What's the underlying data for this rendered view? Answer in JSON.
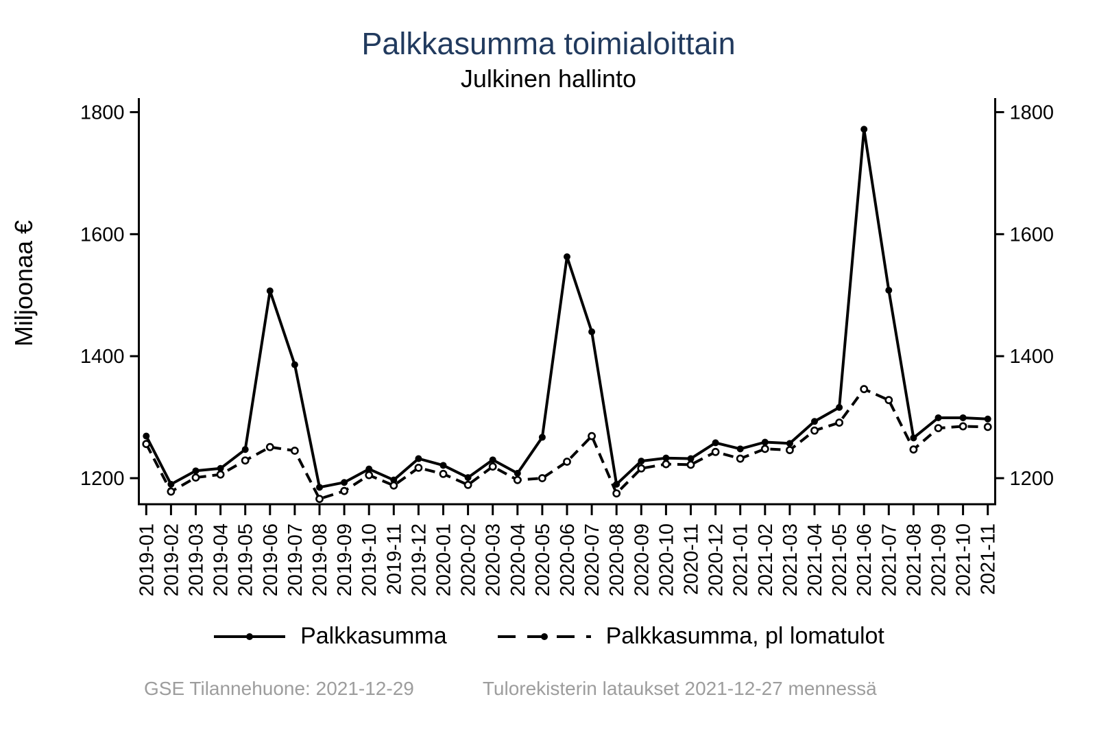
{
  "title": "Palkkasumma toimialoittain",
  "subtitle": "Julkinen hallinto",
  "footer": {
    "left": "GSE Tilannehuone: 2021-12-29",
    "right": "Tulorekisterin lataukset 2021-12-27 mennessä"
  },
  "colors": {
    "title": "#213a5e",
    "axis": "#000000",
    "series": "#000000",
    "footer_text": "#9d9d9d"
  },
  "chart_data": {
    "type": "line",
    "title": "Palkkasumma toimialoittain",
    "subtitle": "Julkinen hallinto",
    "ylabel": "Miljoonaa €",
    "xlabel": "",
    "grid": false,
    "legend_position": "bottom",
    "yticks": [
      1200,
      1400,
      1600,
      1800
    ],
    "ylim": [
      1150,
      1827
    ],
    "y_axis_both_sides": true,
    "x": [
      "2019-01",
      "2019-02",
      "2019-03",
      "2019-04",
      "2019-05",
      "2019-06",
      "2019-07",
      "2019-08",
      "2019-09",
      "2019-10",
      "2019-11",
      "2019-12",
      "2020-01",
      "2020-02",
      "2020-03",
      "2020-04",
      "2020-05",
      "2020-06",
      "2020-07",
      "2020-08",
      "2020-09",
      "2020-10",
      "2020-11",
      "2020-12",
      "2021-01",
      "2021-02",
      "2021-03",
      "2021-04",
      "2021-05",
      "2021-06",
      "2021-07",
      "2021-08",
      "2021-09",
      "2021-10",
      "2021-11"
    ],
    "series": [
      {
        "name": "Palkkasumma",
        "line_style": "solid",
        "marker": "filled-circle",
        "values": [
          1269,
          1190,
          1212,
          1216,
          1247,
          1507,
          1386,
          1185,
          1193,
          1215,
          1197,
          1232,
          1221,
          1201,
          1230,
          1208,
          1267,
          1563,
          1440,
          1190,
          1228,
          1233,
          1232,
          1258,
          1248,
          1259,
          1257,
          1293,
          1316,
          1772,
          1508,
          1266,
          1299,
          1299,
          1297
        ]
      },
      {
        "name": "Palkkasumma, pl lomatulot",
        "line_style": "dashed",
        "marker": "open-circle",
        "values": [
          1256,
          1178,
          1201,
          1206,
          1229,
          1251,
          1245,
          1166,
          1179,
          1205,
          1188,
          1217,
          1207,
          1189,
          1219,
          1197,
          1200,
          1227,
          1269,
          1175,
          1216,
          1223,
          1222,
          1243,
          1232,
          1248,
          1246,
          1278,
          1291,
          1346,
          1328,
          1247,
          1282,
          1285,
          1284
        ]
      }
    ]
  }
}
